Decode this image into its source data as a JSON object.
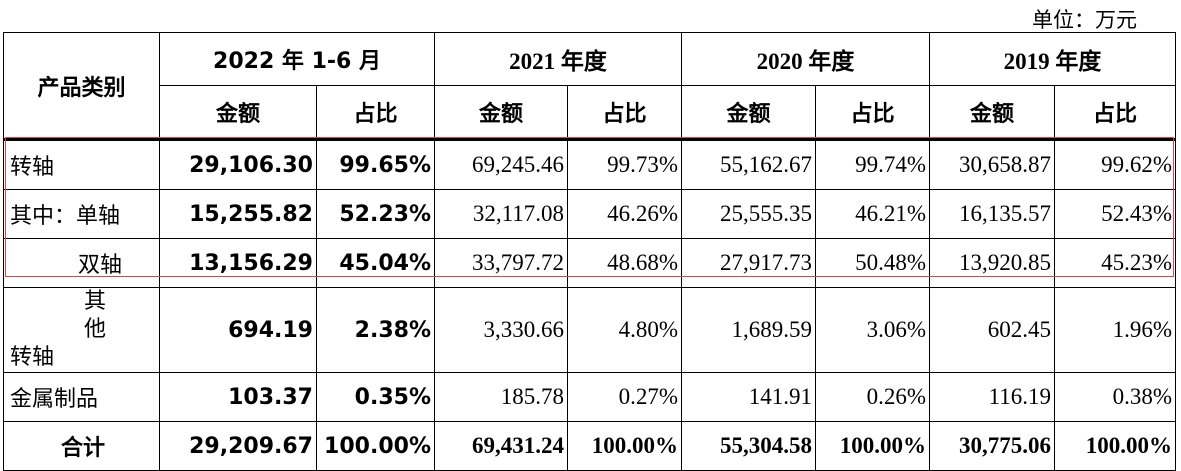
{
  "unit_label": "单位：万元",
  "header": {
    "category": "产品类别",
    "periods": [
      "2022 年 1-6 月",
      "2021 年度",
      "2020 年度",
      "2019 年度"
    ],
    "amount": "金额",
    "ratio": "占比"
  },
  "rows": [
    {
      "cat": "转轴",
      "v": [
        "29,106.30",
        "99.65%",
        "69,245.46",
        "99.73%",
        "55,162.67",
        "99.74%",
        "30,658.87",
        "99.62%"
      ]
    },
    {
      "cat": "其中：单轴",
      "v": [
        "15,255.82",
        "52.23%",
        "32,117.08",
        "46.26%",
        "25,555.35",
        "46.21%",
        "16,135.57",
        "52.43%"
      ]
    },
    {
      "cat": "双轴",
      "v": [
        "13,156.29",
        "45.04%",
        "33,797.72",
        "48.68%",
        "27,917.73",
        "50.48%",
        "13,920.85",
        "45.23%"
      ]
    },
    {
      "cat_line1": "其他",
      "cat_line2": "转轴",
      "v": [
        "694.19",
        "2.38%",
        "3,330.66",
        "4.80%",
        "1,689.59",
        "3.06%",
        "602.45",
        "1.96%"
      ]
    },
    {
      "cat": "金属制品",
      "v": [
        "103.37",
        "0.35%",
        "185.78",
        "0.27%",
        "141.91",
        "0.26%",
        "116.19",
        "0.38%"
      ]
    },
    {
      "cat": "合计",
      "v": [
        "29,209.67",
        "100.00%",
        "69,431.24",
        "100.00%",
        "55,304.58",
        "100.00%",
        "30,775.06",
        "100.00%"
      ]
    }
  ]
}
